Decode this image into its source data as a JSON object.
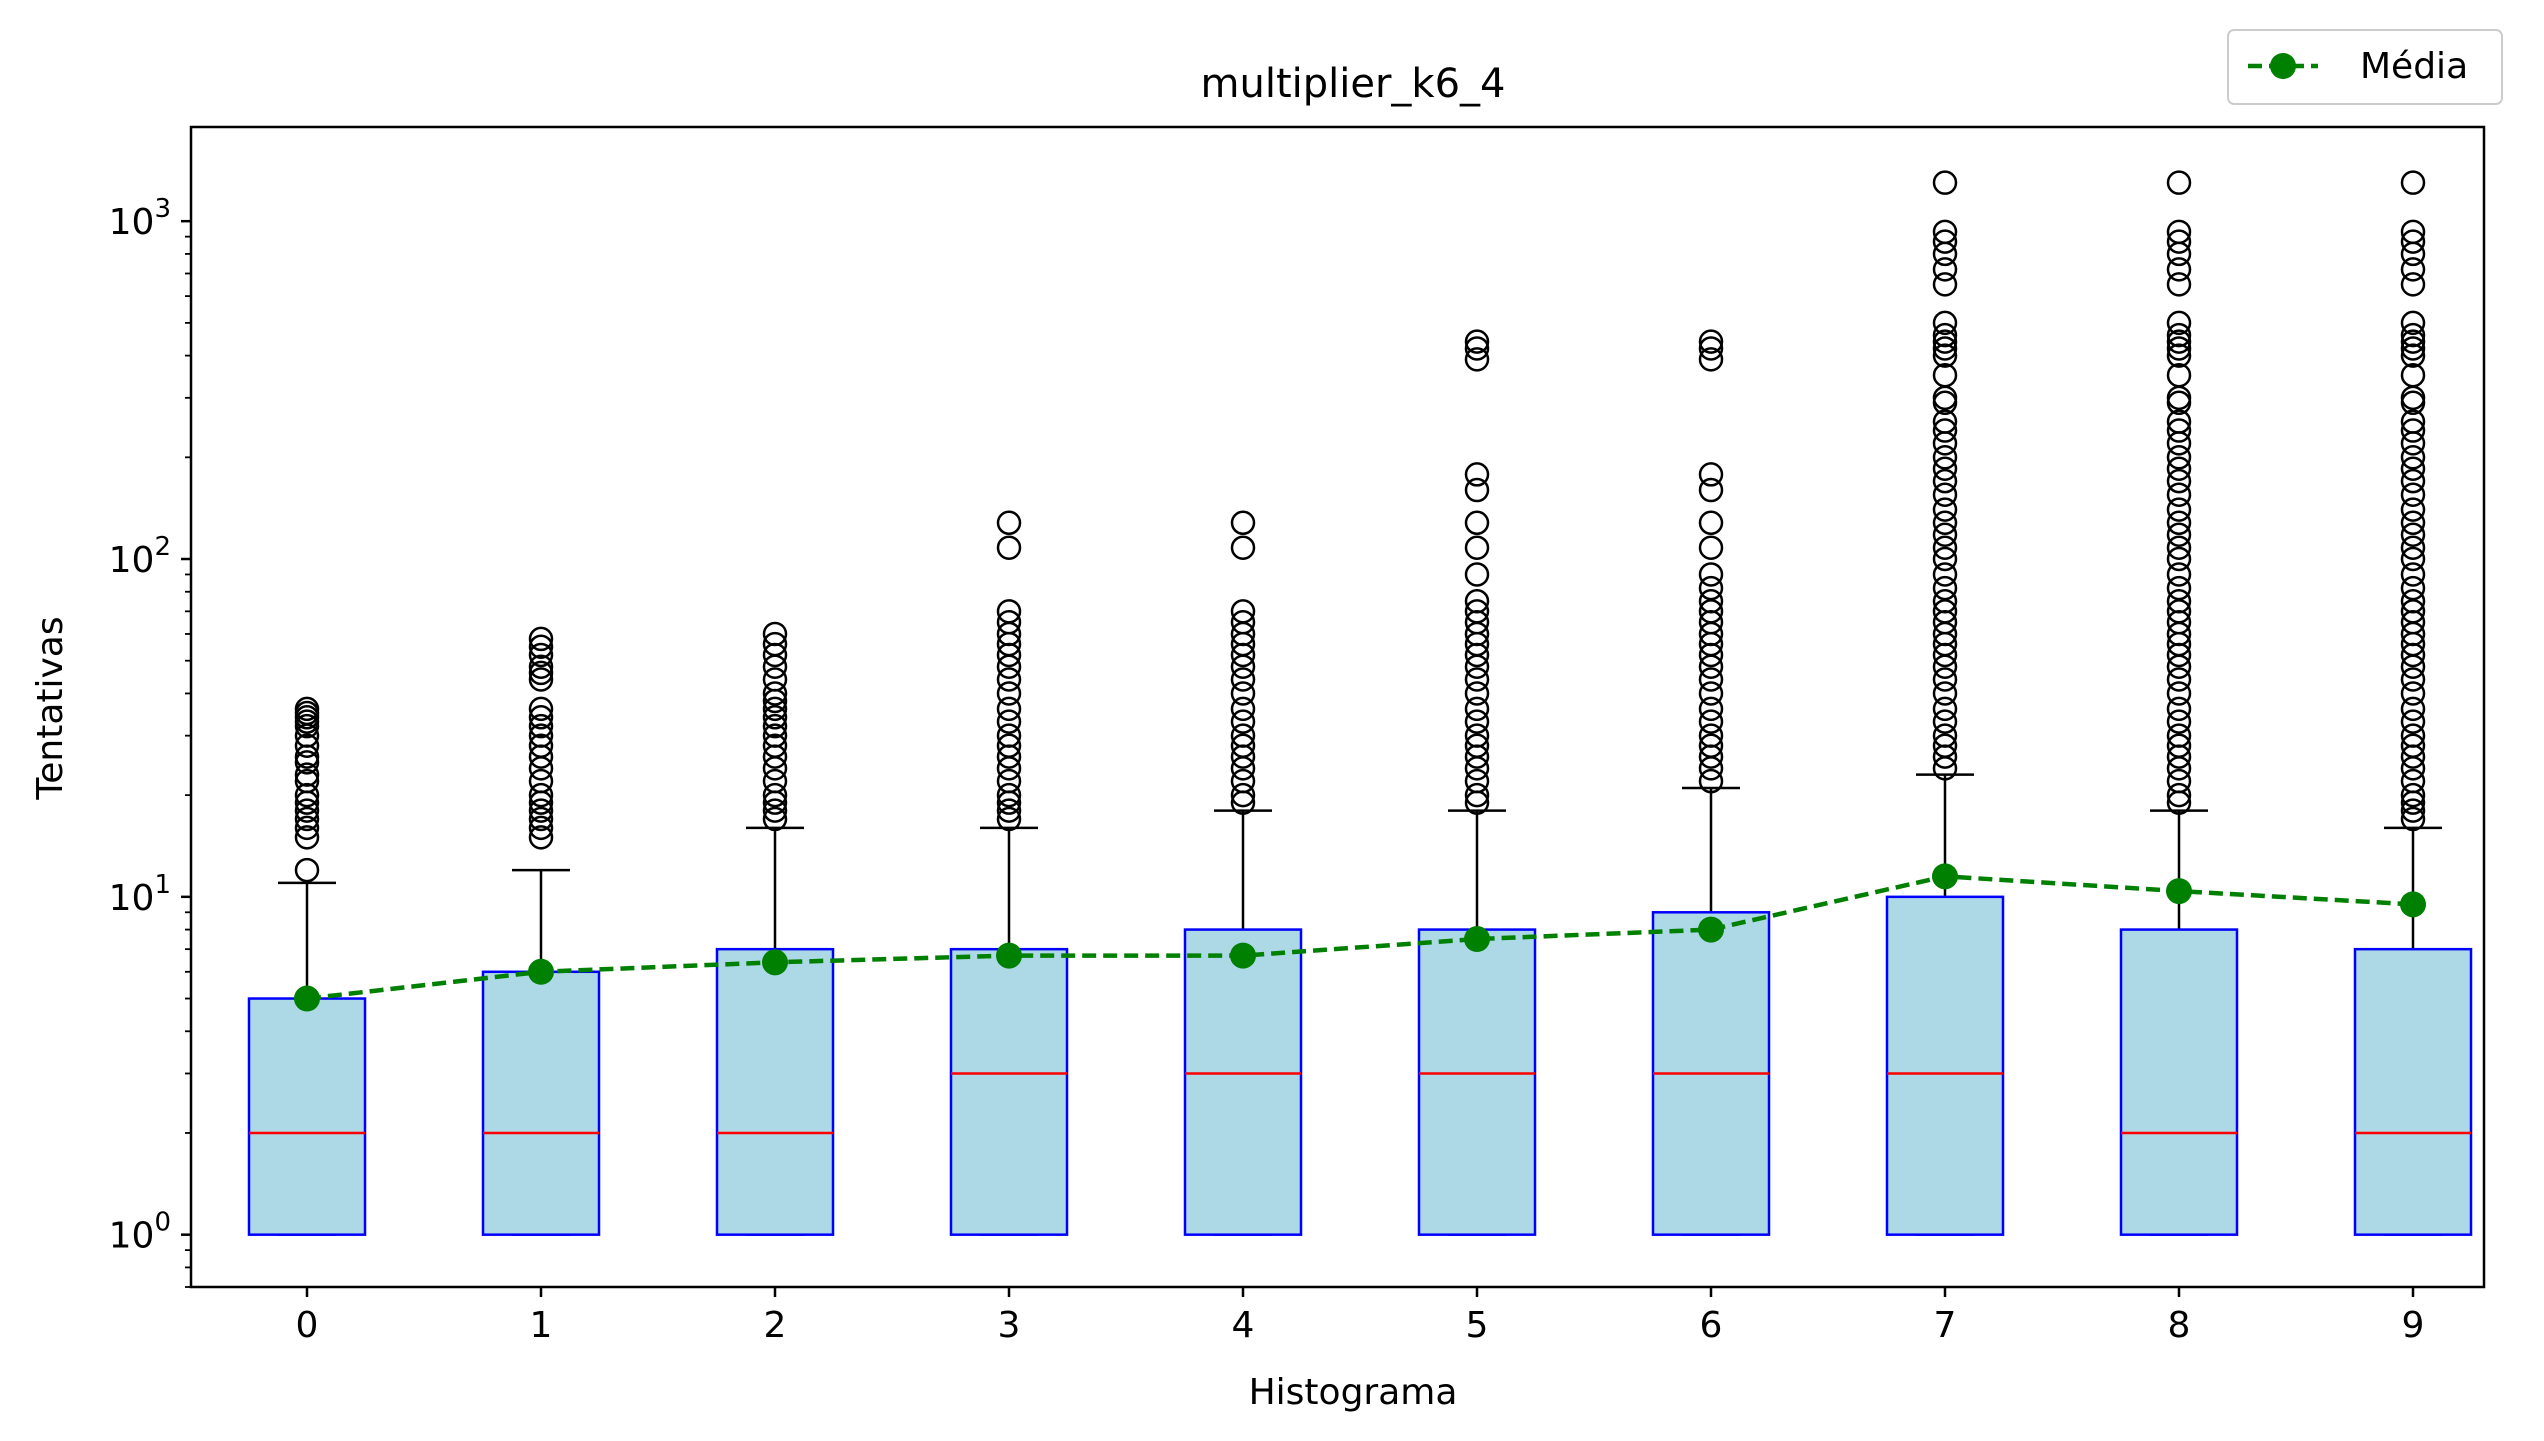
{
  "chart_data": {
    "type": "box",
    "title": "multiplier_k6_4",
    "xlabel": "Histograma",
    "ylabel": "Tentativas",
    "y_scale": "log",
    "ylim": [
      0.7,
      1900
    ],
    "y_tick_base": "10",
    "y_tick_exponents": [
      "0",
      "1",
      "2",
      "3"
    ],
    "categories": [
      "0",
      "1",
      "2",
      "3",
      "4",
      "5",
      "6",
      "7",
      "8",
      "9"
    ],
    "boxes": [
      {
        "q1": 1,
        "median": 2,
        "q3": 5,
        "whisker_low": 1,
        "whisker_high": 11,
        "mean": 5.0,
        "outliers": [
          12,
          15,
          16,
          17,
          18,
          19,
          20,
          22,
          23,
          25,
          26,
          28,
          30,
          32,
          33,
          34,
          35,
          36
        ]
      },
      {
        "q1": 1,
        "median": 2,
        "q3": 6,
        "whisker_low": 1,
        "whisker_high": 12,
        "mean": 6.0,
        "outliers": [
          15,
          16,
          17,
          18,
          19,
          20,
          22,
          24,
          26,
          28,
          30,
          32,
          34,
          36,
          44,
          46,
          48,
          52,
          55,
          58
        ]
      },
      {
        "q1": 1,
        "median": 2,
        "q3": 7,
        "whisker_low": 1,
        "whisker_high": 16,
        "mean": 6.4,
        "outliers": [
          17,
          18,
          19,
          20,
          22,
          24,
          26,
          28,
          30,
          32,
          34,
          36,
          38,
          40,
          44,
          48,
          52,
          56,
          60
        ]
      },
      {
        "q1": 1,
        "median": 3,
        "q3": 7,
        "whisker_low": 1,
        "whisker_high": 16,
        "mean": 6.7,
        "outliers": [
          17,
          18,
          19,
          20,
          22,
          24,
          26,
          28,
          30,
          33,
          36,
          40,
          44,
          48,
          52,
          56,
          60,
          65,
          70,
          108,
          128
        ]
      },
      {
        "q1": 1,
        "median": 3,
        "q3": 8,
        "whisker_low": 1,
        "whisker_high": 18,
        "mean": 6.7,
        "outliers": [
          19,
          20,
          22,
          24,
          26,
          28,
          30,
          33,
          36,
          40,
          44,
          48,
          52,
          56,
          60,
          65,
          70,
          108,
          128
        ]
      },
      {
        "q1": 1,
        "median": 3,
        "q3": 8,
        "whisker_low": 1,
        "whisker_high": 18,
        "mean": 7.5,
        "outliers": [
          19,
          20,
          22,
          24,
          26,
          28,
          30,
          33,
          36,
          40,
          44,
          48,
          52,
          56,
          60,
          65,
          70,
          75,
          90,
          108,
          128,
          160,
          178,
          390,
          420,
          440
        ]
      },
      {
        "q1": 1,
        "median": 3,
        "q3": 9,
        "whisker_low": 1,
        "whisker_high": 21,
        "mean": 8.0,
        "outliers": [
          22,
          24,
          26,
          28,
          30,
          33,
          36,
          40,
          44,
          48,
          52,
          56,
          60,
          65,
          70,
          75,
          82,
          90,
          108,
          128,
          160,
          178,
          390,
          420,
          440
        ]
      },
      {
        "q1": 1,
        "median": 3,
        "q3": 10,
        "whisker_low": 1,
        "whisker_high": 23,
        "mean": 11.5,
        "outliers": [
          24,
          26,
          28,
          30,
          33,
          36,
          40,
          44,
          48,
          52,
          56,
          60,
          65,
          70,
          75,
          82,
          90,
          100,
          108,
          118,
          128,
          140,
          155,
          170,
          185,
          200,
          220,
          240,
          255,
          290,
          300,
          350,
          400,
          420,
          440,
          460,
          500,
          650,
          720,
          800,
          870,
          930,
          1300
        ]
      },
      {
        "q1": 1,
        "median": 2,
        "q3": 8,
        "whisker_low": 1,
        "whisker_high": 18,
        "mean": 10.4,
        "outliers": [
          19,
          20,
          22,
          24,
          26,
          28,
          30,
          33,
          36,
          40,
          44,
          48,
          52,
          56,
          60,
          65,
          70,
          75,
          82,
          90,
          100,
          108,
          118,
          128,
          140,
          155,
          170,
          185,
          200,
          220,
          240,
          255,
          290,
          300,
          350,
          400,
          420,
          440,
          460,
          500,
          650,
          720,
          800,
          870,
          930,
          1300
        ]
      },
      {
        "q1": 1,
        "median": 2,
        "q3": 7,
        "whisker_low": 1,
        "whisker_high": 16,
        "mean": 9.5,
        "outliers": [
          17,
          18,
          19,
          20,
          22,
          24,
          26,
          28,
          30,
          33,
          36,
          40,
          44,
          48,
          52,
          56,
          60,
          65,
          70,
          75,
          82,
          90,
          100,
          108,
          118,
          128,
          140,
          155,
          170,
          185,
          200,
          220,
          240,
          255,
          290,
          300,
          350,
          400,
          420,
          440,
          460,
          500,
          650,
          720,
          800,
          870,
          930,
          1300
        ]
      }
    ],
    "mean_series": {
      "name": "Média",
      "color": "#008000",
      "style": "dashed"
    },
    "colors": {
      "box_fill": "#add8e6",
      "box_edge": "#0000ff",
      "median": "#ff0000",
      "whisker": "#000000",
      "mean": "#008000"
    },
    "legend_placement": "above-top-right",
    "grid": false
  }
}
